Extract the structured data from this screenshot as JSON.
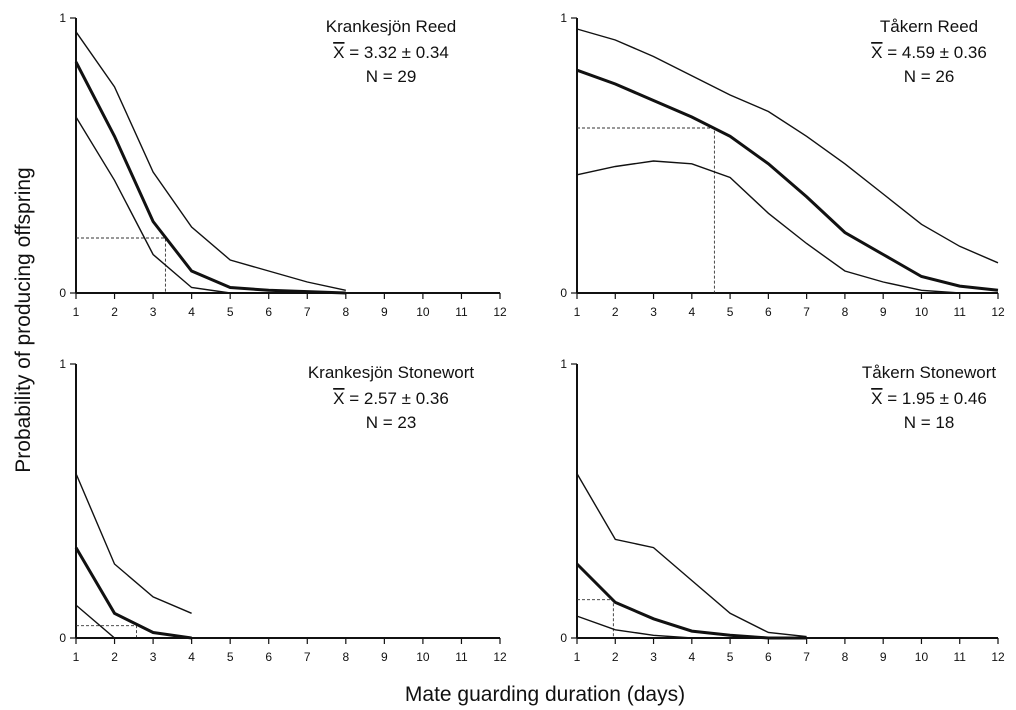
{
  "y_axis_title": "Probability of producing offspring",
  "x_axis_title": "Mate guarding duration (days)",
  "chart_data": [
    {
      "type": "line",
      "title": "Krankesjön Reed",
      "stat_symbol": "X",
      "stat_text": "= 3.32 ± 0.34",
      "n_text": "N = 29",
      "x": [
        1,
        2,
        3,
        4,
        5,
        6,
        7,
        8,
        9,
        10,
        11,
        12
      ],
      "xlim": [
        1,
        12
      ],
      "ylim": [
        0,
        1
      ],
      "y_tick_labels": [
        "0",
        "1"
      ],
      "series": [
        {
          "role": "upper",
          "x": [
            1,
            2,
            3,
            4,
            5,
            6,
            7,
            8
          ],
          "values": [
            0.95,
            0.75,
            0.44,
            0.24,
            0.12,
            0.08,
            0.04,
            0.01
          ]
        },
        {
          "role": "mean",
          "x": [
            1,
            2,
            3,
            4,
            5,
            6,
            7,
            8
          ],
          "values": [
            0.84,
            0.57,
            0.26,
            0.08,
            0.02,
            0.01,
            0.005,
            0.0
          ]
        },
        {
          "role": "lower",
          "x": [
            1,
            2,
            3,
            4,
            5,
            6,
            7,
            8
          ],
          "values": [
            0.64,
            0.41,
            0.14,
            0.02,
            0.0,
            0.0,
            0.0,
            0.0
          ]
        }
      ],
      "reference": {
        "x": 3.32,
        "y": 0.2
      }
    },
    {
      "type": "line",
      "title": "Tåkern Reed",
      "stat_symbol": "X",
      "stat_text": "= 4.59 ± 0.36",
      "n_text": "N = 26",
      "x": [
        1,
        2,
        3,
        4,
        5,
        6,
        7,
        8,
        9,
        10,
        11,
        12
      ],
      "xlim": [
        1,
        12
      ],
      "ylim": [
        0,
        1
      ],
      "y_tick_labels": [
        "0",
        "1"
      ],
      "series": [
        {
          "role": "upper",
          "x": [
            1,
            2,
            3,
            4,
            5,
            6,
            7,
            8,
            9,
            10,
            11,
            12
          ],
          "values": [
            0.96,
            0.92,
            0.86,
            0.79,
            0.72,
            0.66,
            0.57,
            0.47,
            0.36,
            0.25,
            0.17,
            0.11
          ]
        },
        {
          "role": "mean",
          "x": [
            1,
            2,
            3,
            4,
            5,
            6,
            7,
            8,
            9,
            10,
            11,
            12
          ],
          "values": [
            0.81,
            0.76,
            0.7,
            0.64,
            0.57,
            0.47,
            0.35,
            0.22,
            0.14,
            0.06,
            0.025,
            0.01
          ]
        },
        {
          "role": "lower",
          "x": [
            1,
            2,
            3,
            4,
            5,
            6,
            7,
            8,
            9,
            10,
            11,
            12
          ],
          "values": [
            0.43,
            0.46,
            0.48,
            0.47,
            0.42,
            0.29,
            0.18,
            0.08,
            0.04,
            0.01,
            0.0,
            0.0
          ]
        }
      ],
      "reference": {
        "x": 4.59,
        "y": 0.6
      }
    },
    {
      "type": "line",
      "title": "Krankesjön Stonewort",
      "stat_symbol": "X",
      "stat_text": "= 2.57 ± 0.36",
      "n_text": "N = 23",
      "x": [
        1,
        2,
        3,
        4,
        5,
        6,
        7,
        8,
        9,
        10,
        11,
        12
      ],
      "xlim": [
        1,
        12
      ],
      "ylim": [
        0,
        1
      ],
      "y_tick_labels": [
        "0",
        "1"
      ],
      "series": [
        {
          "role": "upper",
          "x": [
            1,
            2,
            3,
            4
          ],
          "values": [
            0.6,
            0.27,
            0.15,
            0.09
          ]
        },
        {
          "role": "mean",
          "x": [
            1,
            2,
            3,
            4
          ],
          "values": [
            0.33,
            0.09,
            0.02,
            0.0
          ]
        },
        {
          "role": "lower",
          "x": [
            1,
            2,
            3,
            4
          ],
          "values": [
            0.12,
            0.0,
            0.0,
            0.0
          ]
        }
      ],
      "reference": {
        "x": 2.57,
        "y": 0.045
      }
    },
    {
      "type": "line",
      "title": "Tåkern Stonewort",
      "stat_symbol": "X",
      "stat_text": "= 1.95 ± 0.46",
      "n_text": "N = 18",
      "x": [
        1,
        2,
        3,
        4,
        5,
        6,
        7,
        8,
        9,
        10,
        11,
        12
      ],
      "xlim": [
        1,
        12
      ],
      "ylim": [
        0,
        1
      ],
      "y_tick_labels": [
        "0",
        "1"
      ],
      "series": [
        {
          "role": "upper",
          "x": [
            1,
            2,
            3,
            4,
            5,
            6,
            7
          ],
          "values": [
            0.6,
            0.36,
            0.33,
            0.21,
            0.09,
            0.02,
            0.005
          ]
        },
        {
          "role": "mean",
          "x": [
            1,
            2,
            3,
            4,
            5,
            6,
            7
          ],
          "values": [
            0.27,
            0.13,
            0.07,
            0.025,
            0.01,
            0.0,
            0.0
          ]
        },
        {
          "role": "lower",
          "x": [
            1,
            2,
            3,
            4,
            5,
            6,
            7
          ],
          "values": [
            0.08,
            0.03,
            0.01,
            0.0,
            0.0,
            0.0,
            0.0
          ]
        }
      ],
      "reference": {
        "x": 1.95,
        "y": 0.14
      }
    }
  ]
}
